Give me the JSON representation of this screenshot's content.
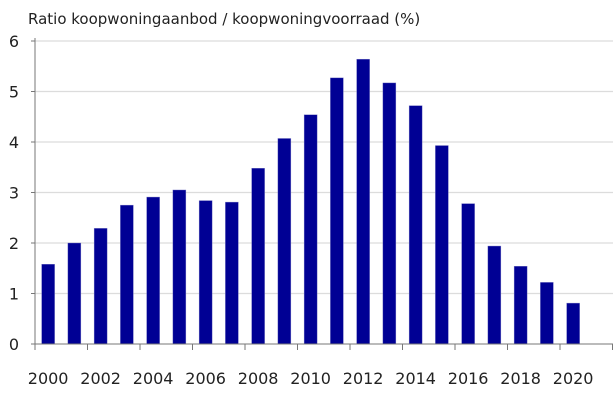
{
  "chart_data": {
    "type": "bar",
    "title": "Ratio koopwoningaanbod / koopwoningvoorraad (%)",
    "xlabel": "",
    "ylabel": "",
    "categories": [
      "2000",
      "2001",
      "2002",
      "2003",
      "2004",
      "2005",
      "2006",
      "2007",
      "2008",
      "2009",
      "2010",
      "2011",
      "2012",
      "2013",
      "2014",
      "2015",
      "2016",
      "2017",
      "2018",
      "2019",
      "2020"
    ],
    "values": [
      1.58,
      2.0,
      2.29,
      2.75,
      2.91,
      3.05,
      2.84,
      2.81,
      3.48,
      4.07,
      4.54,
      5.27,
      5.64,
      5.17,
      4.72,
      3.93,
      2.78,
      1.94,
      1.54,
      1.22,
      0.81
    ],
    "x_tick_labels": [
      "2000",
      "2002",
      "2004",
      "2006",
      "2008",
      "2010",
      "2012",
      "2014",
      "2016",
      "2018",
      "2020"
    ],
    "y_tick_labels": [
      "0",
      "1",
      "2",
      "3",
      "4",
      "5",
      "6"
    ],
    "ylim": [
      0,
      6
    ],
    "grid": true,
    "legend": "none",
    "bar_color": "#000094"
  }
}
